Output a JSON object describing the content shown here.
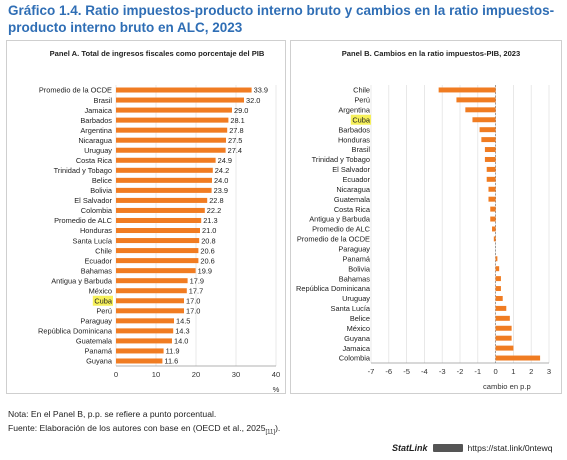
{
  "title": "Gráfico 1.4. Ratio impuestos-producto interno bruto y cambios en la ratio impuestos-producto interno bruto en ALC, 2023",
  "note": "Nota: En el Panel B, p.p. se refiere a punto porcentual.",
  "source_prefix": "Fuente: Elaboración de los autores con base en (OECD et al., 2025",
  "source_ref": "[11]",
  "source_suffix": ").",
  "statlink": {
    "logo": "StatLink",
    "url": "https://stat.link/0ntewq"
  },
  "colors": {
    "bar": "#f07c22",
    "highlight": "#f6f05a",
    "title": "#2f6eb5",
    "grid": "#e3e3e3"
  },
  "chart_data": [
    {
      "type": "bar",
      "orientation": "horizontal",
      "title": "Panel A. Total de ingresos fiscales como porcentaje del PIB",
      "xlabel": "%",
      "xlim": [
        0,
        40
      ],
      "xticks": [
        0,
        10,
        20,
        30,
        40
      ],
      "grid": true,
      "highlight": [
        "Cuba"
      ],
      "categories": [
        "Promedio de la OCDE",
        "Brasil",
        "Jamaica",
        "Barbados",
        "Argentina",
        "Nicaragua",
        "Uruguay",
        "Costa Rica",
        "Trinidad y Tobago",
        "Belice",
        "Bolivia",
        "El Salvador",
        "Colombia",
        "Promedio de ALC",
        "Honduras",
        "Santa Lucía",
        "Chile",
        "Ecuador",
        "Bahamas",
        "Antigua y Barbuda",
        "México",
        "Cuba",
        "Perú",
        "Paraguay",
        "República Dominicana",
        "Guatemala",
        "Panamá",
        "Guyana"
      ],
      "values": [
        33.9,
        32.0,
        29.0,
        28.1,
        27.8,
        27.5,
        27.4,
        24.9,
        24.2,
        24.0,
        23.9,
        22.8,
        22.2,
        21.3,
        21.0,
        20.8,
        20.6,
        20.6,
        19.9,
        17.9,
        17.7,
        17.0,
        17.0,
        14.5,
        14.3,
        14.0,
        11.9,
        11.6
      ],
      "data_labels": [
        "33.9",
        "32.0",
        "29.0",
        "28.1",
        "27.8",
        "27.5",
        "27.4",
        "24.9",
        "24.2",
        "24.0",
        "23.9",
        "22.8",
        "22.2",
        "21.3",
        "21.0",
        "20.8",
        "20.6",
        "20.6",
        "19.9",
        "17.9",
        "17.7",
        "17.0",
        "17.0",
        "14.5",
        "14.3",
        "14.0",
        "11.9",
        "11.6"
      ]
    },
    {
      "type": "bar",
      "orientation": "horizontal",
      "title": "Panel B. Cambios en la ratio impuestos-PIB, 2023",
      "xlabel": "cambio en p.p",
      "xlim": [
        -7,
        3
      ],
      "xticks": [
        -7,
        -6,
        -5,
        -4,
        -3,
        -2,
        -1,
        0,
        1,
        2,
        3
      ],
      "grid": true,
      "highlight": [
        "Cuba"
      ],
      "categories": [
        "Chile",
        "Perú",
        "Argentina",
        "Cuba",
        "Barbados",
        "Honduras",
        "Brasil",
        "Trinidad y Tobago",
        "El Salvador",
        "Ecuador",
        "Nicaragua",
        "Guatemala",
        "Costa Rica",
        "Antigua y Barbuda",
        "Promedio de ALC",
        "Promedio de la OCDE",
        "Paraguay",
        "Panamá",
        "Bolivia",
        "Bahamas",
        "República Dominicana",
        "Uruguay",
        "Santa Lucía",
        "Belice",
        "México",
        "Guyana",
        "Jamaica",
        "Colombia"
      ],
      "values": [
        -3.2,
        -2.2,
        -1.7,
        -1.3,
        -0.9,
        -0.8,
        -0.6,
        -0.6,
        -0.5,
        -0.5,
        -0.4,
        -0.4,
        -0.3,
        -0.3,
        -0.2,
        -0.1,
        0.0,
        0.1,
        0.2,
        0.3,
        0.3,
        0.4,
        0.6,
        0.8,
        0.9,
        0.9,
        1.0,
        2.5
      ]
    }
  ]
}
